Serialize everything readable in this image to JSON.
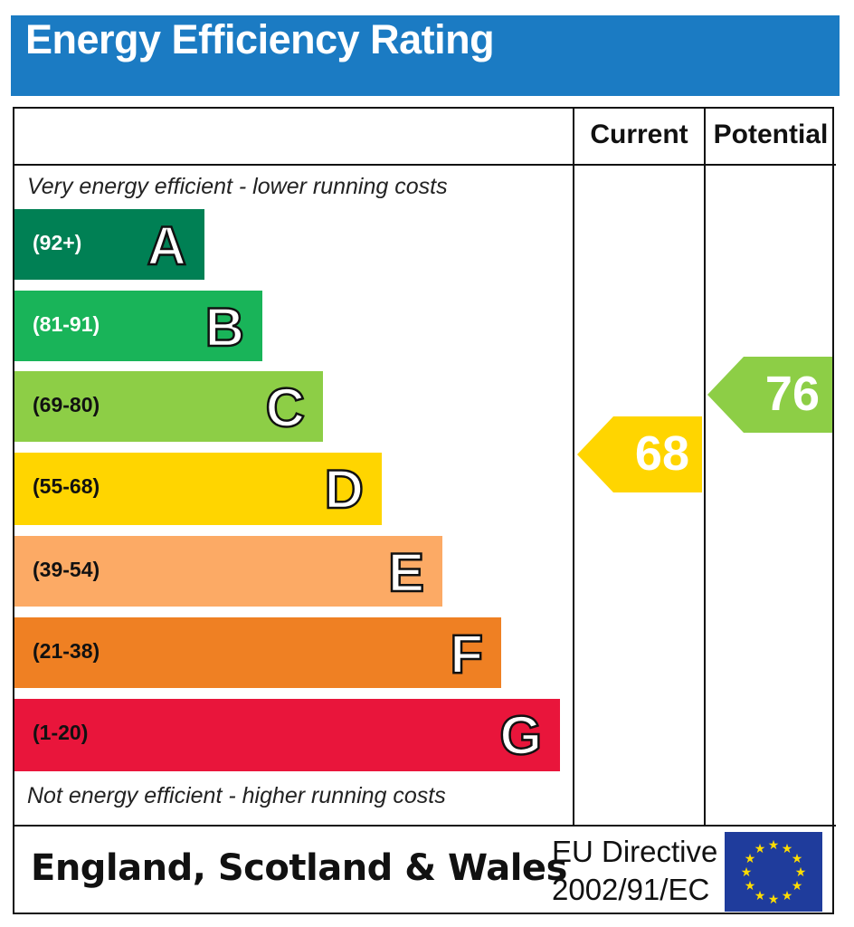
{
  "title": "Energy Efficiency Rating",
  "columns": {
    "current": "Current",
    "potential": "Potential"
  },
  "notes": {
    "top": "Very energy efficient - lower running costs",
    "bottom": "Not energy efficient - higher running costs"
  },
  "footer": {
    "region": "England, Scotland & Wales",
    "directive_line1": "EU Directive",
    "directive_line2": "2002/91/EC",
    "flag_icon": "eu-flag-icon"
  },
  "colors": {
    "title_bar": "#1b7bc3",
    "flag": "#1f3c9c",
    "stars": "#ffdd00"
  },
  "chart_data": {
    "type": "bar",
    "title": "Energy Efficiency Rating",
    "categories": [
      "A",
      "B",
      "C",
      "D",
      "E",
      "F",
      "G"
    ],
    "bands": [
      {
        "letter": "A",
        "range": "(92+)",
        "color": "#008054",
        "text_color": "#ffffff"
      },
      {
        "letter": "B",
        "range": "(81-91)",
        "color": "#19b459",
        "text_color": "#ffffff"
      },
      {
        "letter": "C",
        "range": "(69-80)",
        "color": "#8dce46",
        "text_color": "#111111"
      },
      {
        "letter": "D",
        "range": "(55-68)",
        "color": "#ffd500",
        "text_color": "#111111"
      },
      {
        "letter": "E",
        "range": "(39-54)",
        "color": "#fcaa65",
        "text_color": "#111111"
      },
      {
        "letter": "F",
        "range": "(21-38)",
        "color": "#ef8023",
        "text_color": "#111111"
      },
      {
        "letter": "G",
        "range": "(1-20)",
        "color": "#e9153b",
        "text_color": "#111111"
      }
    ],
    "current": {
      "value": 68,
      "band": "D",
      "color": "#ffd500"
    },
    "potential": {
      "value": 76,
      "band": "C",
      "color": "#8dce46"
    }
  }
}
